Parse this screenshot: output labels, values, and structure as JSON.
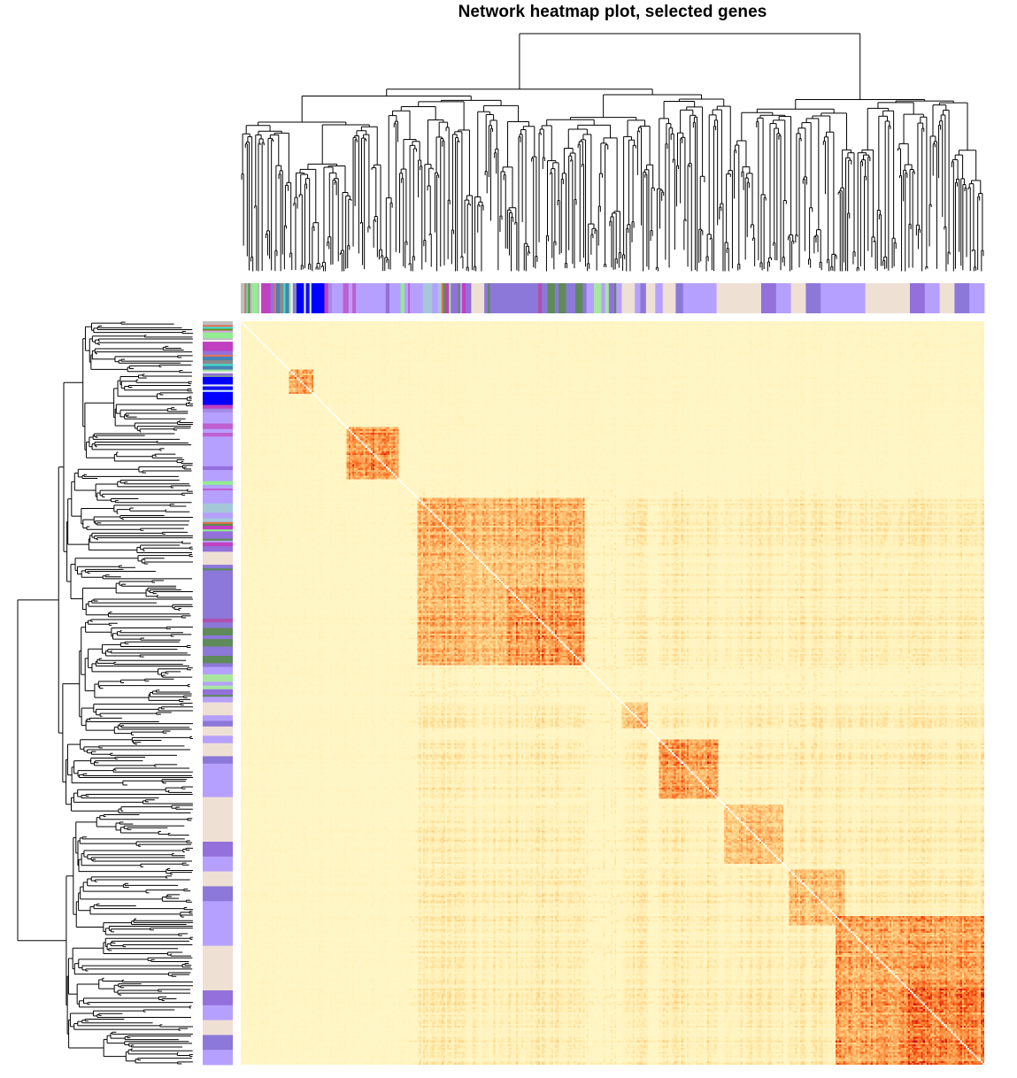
{
  "chart_data": {
    "type": "heatmap",
    "title": "Network heatmap plot, selected genes",
    "xlabel": "",
    "ylabel": "",
    "n_genes": 400,
    "value_range": [
      0,
      1
    ],
    "color_scale": [
      "#fff8cc",
      "#fff1b9",
      "#fed88d",
      "#fdb061",
      "#fc7f31",
      "#f34d12",
      "#d71a10",
      "#b00026"
    ],
    "diagonal_color": "#ffffff",
    "dendrogram_color": "#000000",
    "modules": [
      {
        "name": "grey",
        "color": "#bebebe",
        "start": 0,
        "end": 2
      },
      {
        "name": "salmon",
        "color": "#e2725b",
        "start": 2,
        "end": 3
      },
      {
        "name": "turquoise",
        "color": "#40e0d0",
        "start": 3,
        "end": 4
      },
      {
        "name": "darkgreen",
        "color": "#6b8e23",
        "start": 4,
        "end": 5
      },
      {
        "name": "plum",
        "color": "#dda0dd",
        "start": 5,
        "end": 6
      },
      {
        "name": "lightgreen",
        "color": "#90ee90",
        "start": 6,
        "end": 9
      },
      {
        "name": "grey",
        "color": "#bebebe",
        "start": 9,
        "end": 10
      },
      {
        "name": "white",
        "color": "#f0f0f0",
        "start": 10,
        "end": 11
      },
      {
        "name": "magenta",
        "color": "#c040c0",
        "start": 11,
        "end": 16
      },
      {
        "name": "mediumpurple",
        "color": "#9370db",
        "start": 16,
        "end": 18
      },
      {
        "name": "salmon",
        "color": "#e2725b",
        "start": 18,
        "end": 19
      },
      {
        "name": "steelblue",
        "color": "#4682b4",
        "start": 19,
        "end": 21
      },
      {
        "name": "grey",
        "color": "#8a8a8a",
        "start": 21,
        "end": 23
      },
      {
        "name": "turquoise",
        "color": "#40e0d0",
        "start": 23,
        "end": 24
      },
      {
        "name": "steelblue",
        "color": "#4682b4",
        "start": 24,
        "end": 26
      },
      {
        "name": "lightgreen",
        "color": "#a0e0a0",
        "start": 26,
        "end": 27
      },
      {
        "name": "white",
        "color": "#f0f0f0",
        "start": 27,
        "end": 28
      },
      {
        "name": "mediumpurple",
        "color": "#9370db",
        "start": 28,
        "end": 29
      },
      {
        "name": "slategrey",
        "color": "#8090a0",
        "start": 29,
        "end": 30
      },
      {
        "name": "blue",
        "color": "#0000ff",
        "start": 30,
        "end": 34
      },
      {
        "name": "white",
        "color": "#e8e8f0",
        "start": 34,
        "end": 35
      },
      {
        "name": "blue",
        "color": "#1010f0",
        "start": 35,
        "end": 37
      },
      {
        "name": "lightcyan",
        "color": "#cceeff",
        "start": 37,
        "end": 38
      },
      {
        "name": "blue",
        "color": "#0000ff",
        "start": 38,
        "end": 45
      },
      {
        "name": "magenta",
        "color": "#c040c0",
        "start": 45,
        "end": 47
      },
      {
        "name": "mediumpurple",
        "color": "#a48ae6",
        "start": 47,
        "end": 49
      },
      {
        "name": "lightpurple",
        "color": "#b6a0ff",
        "start": 49,
        "end": 55
      },
      {
        "name": "magenta",
        "color": "#c060d0",
        "start": 55,
        "end": 58
      },
      {
        "name": "lightpurple",
        "color": "#b6a0ff",
        "start": 58,
        "end": 60
      },
      {
        "name": "magenta",
        "color": "#c060d0",
        "start": 60,
        "end": 62
      },
      {
        "name": "lightpurple",
        "color": "#b6a0ff",
        "start": 62,
        "end": 78
      },
      {
        "name": "mediumpurple",
        "color": "#9370db",
        "start": 78,
        "end": 80
      },
      {
        "name": "lightpurple",
        "color": "#b6a0ff",
        "start": 80,
        "end": 86
      },
      {
        "name": "lightgreen",
        "color": "#90ee90",
        "start": 86,
        "end": 88
      },
      {
        "name": "lightpurple",
        "color": "#b6a0ff",
        "start": 88,
        "end": 90
      },
      {
        "name": "magenta",
        "color": "#c060d0",
        "start": 90,
        "end": 91
      },
      {
        "name": "lightpurple",
        "color": "#b6a0ff",
        "start": 91,
        "end": 98
      },
      {
        "name": "lightblue",
        "color": "#a4c8d8",
        "start": 98,
        "end": 103
      },
      {
        "name": "lightpurple",
        "color": "#b6a0ff",
        "start": 103,
        "end": 106
      },
      {
        "name": "lightblue",
        "color": "#a4c8d8",
        "start": 106,
        "end": 108
      },
      {
        "name": "coral",
        "color": "#e0704a",
        "start": 108,
        "end": 109
      },
      {
        "name": "darkgreen",
        "color": "#5a8a50",
        "start": 109,
        "end": 110
      },
      {
        "name": "magenta",
        "color": "#c040c0",
        "start": 110,
        "end": 112
      },
      {
        "name": "lightgreen",
        "color": "#90ee90",
        "start": 112,
        "end": 113
      },
      {
        "name": "mediumpurple",
        "color": "#9370db",
        "start": 113,
        "end": 117
      },
      {
        "name": "darkgreen",
        "color": "#5a8a50",
        "start": 117,
        "end": 118
      },
      {
        "name": "lightpurple",
        "color": "#b6a0ff",
        "start": 118,
        "end": 119
      },
      {
        "name": "magenta",
        "color": "#c040c0",
        "start": 119,
        "end": 121
      },
      {
        "name": "mediumpurple",
        "color": "#9370db",
        "start": 121,
        "end": 124
      },
      {
        "name": "antiquewhite",
        "color": "#efe0d4",
        "start": 124,
        "end": 131
      },
      {
        "name": "mediumpurple",
        "color": "#8c78d8",
        "start": 131,
        "end": 133
      },
      {
        "name": "darkgreen",
        "color": "#5a8a50",
        "start": 133,
        "end": 134
      },
      {
        "name": "mediumpurple",
        "color": "#8c78d8",
        "start": 134,
        "end": 160
      },
      {
        "name": "magenta",
        "color": "#b050b0",
        "start": 160,
        "end": 162
      },
      {
        "name": "mediumpurple",
        "color": "#8c78d8",
        "start": 162,
        "end": 165
      },
      {
        "name": "darkgreen",
        "color": "#5f8a5a",
        "start": 165,
        "end": 169
      },
      {
        "name": "mediumpurple",
        "color": "#8c78d8",
        "start": 169,
        "end": 171
      },
      {
        "name": "darkgreen",
        "color": "#5f8a5a",
        "start": 171,
        "end": 175
      },
      {
        "name": "mediumpurple",
        "color": "#8c78d8",
        "start": 175,
        "end": 180
      },
      {
        "name": "darkgreen",
        "color": "#5f8a5a",
        "start": 180,
        "end": 184
      },
      {
        "name": "mediumpurple",
        "color": "#8c78d8",
        "start": 184,
        "end": 186
      },
      {
        "name": "lightpurple",
        "color": "#b6a0ff",
        "start": 186,
        "end": 190
      },
      {
        "name": "lightgreen",
        "color": "#a8e6a0",
        "start": 190,
        "end": 194
      },
      {
        "name": "lightpurple",
        "color": "#b6a0ff",
        "start": 194,
        "end": 196
      },
      {
        "name": "lightgreen",
        "color": "#a8e6a0",
        "start": 196,
        "end": 198
      },
      {
        "name": "mediumpurple",
        "color": "#9370db",
        "start": 198,
        "end": 201
      },
      {
        "name": "darkgreen",
        "color": "#5f8a5a",
        "start": 201,
        "end": 202
      },
      {
        "name": "lightpurple",
        "color": "#b6a0ff",
        "start": 202,
        "end": 205
      },
      {
        "name": "antiquewhite",
        "color": "#efe0d4",
        "start": 205,
        "end": 212
      },
      {
        "name": "lightpurple",
        "color": "#b6a0ff",
        "start": 212,
        "end": 215
      },
      {
        "name": "mediumpurple",
        "color": "#8c78d8",
        "start": 215,
        "end": 218
      },
      {
        "name": "antiquewhite",
        "color": "#efe0d4",
        "start": 218,
        "end": 223
      },
      {
        "name": "lightpurple",
        "color": "#b6a0ff",
        "start": 223,
        "end": 227
      },
      {
        "name": "antiquewhite",
        "color": "#efe0d4",
        "start": 227,
        "end": 234
      },
      {
        "name": "mediumpurple",
        "color": "#8c78d8",
        "start": 234,
        "end": 238
      },
      {
        "name": "lightpurple",
        "color": "#b6a0ff",
        "start": 238,
        "end": 240
      }
    ],
    "blocks": [
      {
        "start": 26,
        "end": 39,
        "strength": 0.72
      },
      {
        "start": 57,
        "end": 85,
        "strength": 0.8
      },
      {
        "start": 95,
        "end": 185,
        "strength": 0.62
      },
      {
        "start": 143,
        "end": 185,
        "strength": 0.78
      },
      {
        "start": 205,
        "end": 219,
        "strength": 0.55
      },
      {
        "start": 225,
        "end": 257,
        "strength": 0.78
      },
      {
        "start": 260,
        "end": 292,
        "strength": 0.58
      },
      {
        "start": 295,
        "end": 325,
        "strength": 0.55
      },
      {
        "start": 320,
        "end": 400,
        "strength": 0.72
      },
      {
        "start": 356,
        "end": 400,
        "strength": 0.86
      }
    ]
  }
}
